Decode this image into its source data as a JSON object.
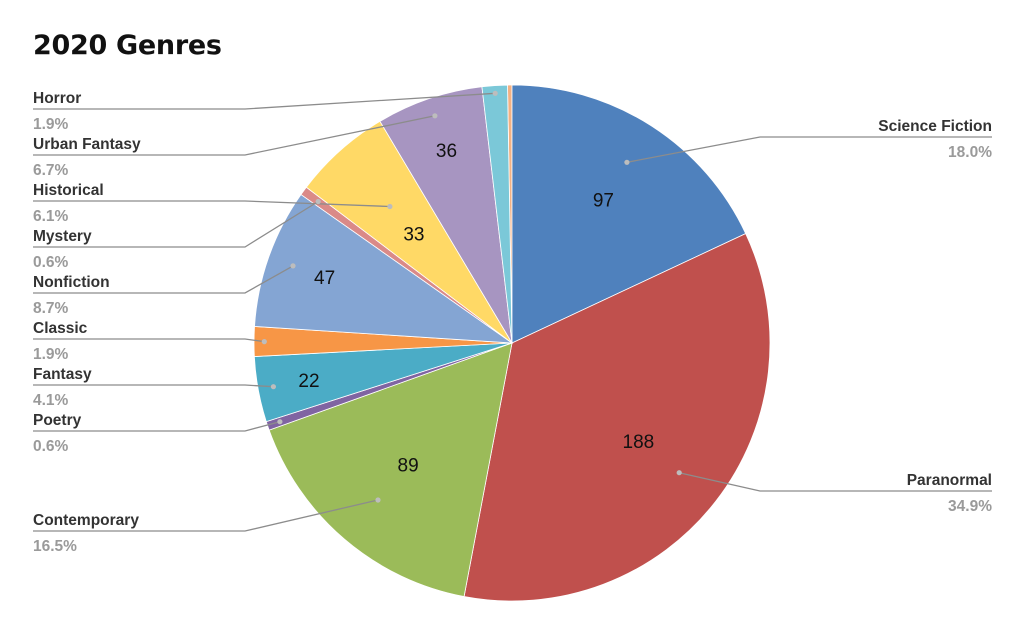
{
  "chart_data": {
    "type": "pie",
    "title": "2020 Genres",
    "categories": [
      "Horror",
      "Science Fiction",
      "Paranormal",
      "Contemporary",
      "Poetry",
      "Fantasy",
      "Classic",
      "Nonfiction",
      "Mystery",
      "Historical",
      "Urban Fantasy"
    ],
    "values": [
      10,
      97,
      188,
      89,
      3,
      22,
      10,
      47,
      3,
      33,
      36
    ],
    "percent_labels": [
      "1.9%",
      "18.0%",
      "34.9%",
      "16.5%",
      "0.6%",
      "4.1%",
      "1.9%",
      "8.7%",
      "0.6%",
      "6.1%",
      "6.7%"
    ],
    "value_labels": [
      "",
      "97",
      "188",
      "89",
      "",
      "22",
      "",
      "47",
      "",
      "33",
      "36"
    ],
    "colors": [
      "#F4B183",
      "#4F81BD",
      "#C0504D",
      "#9BBB59",
      "#8064A2",
      "#4BACC6",
      "#F79646",
      "#84A5D3",
      "#DA8A88",
      "#FFD966",
      "#A795C1"
    ],
    "legend_placement": "callout labels",
    "slice_order": [
      "Horror(orange sliver)",
      "Science Fiction",
      "Paranormal",
      "Contemporary",
      "Poetry",
      "Fantasy",
      "Classic",
      "Nonfiction",
      "Mystery",
      "Historical",
      "Urban Fantasy",
      "Horror(teal)"
    ],
    "extra_slice_color": "#7BC8D8"
  }
}
